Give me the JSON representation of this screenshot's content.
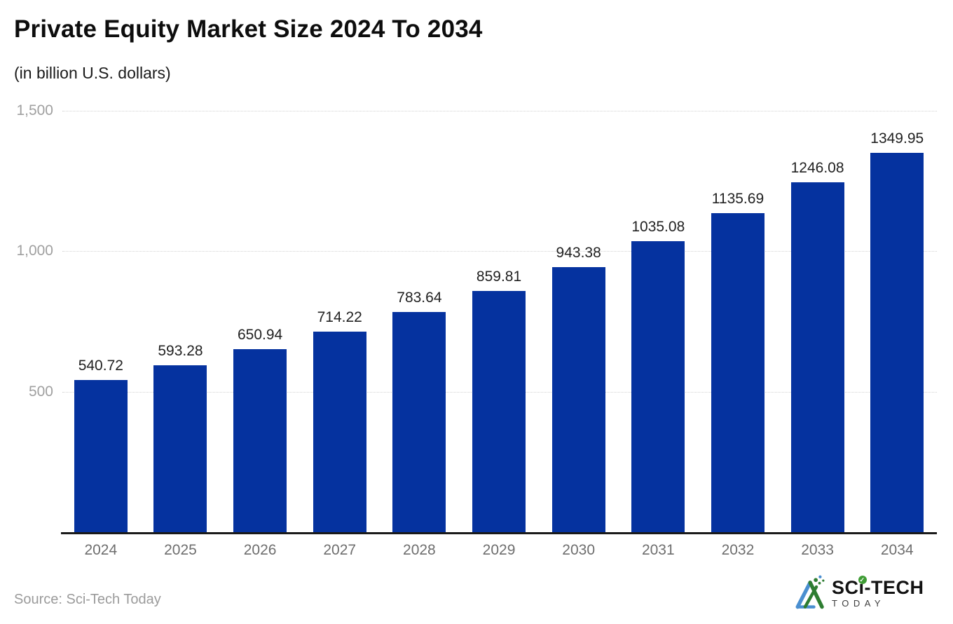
{
  "page": {
    "title": "Private Equity Market Size 2024 To 2034",
    "subtitle": "(in billion U.S. dollars)",
    "source": "Source: Sci-Tech Today"
  },
  "chart_data": {
    "type": "bar",
    "title": "Private Equity Market Size 2024 To 2034",
    "subtitle": "(in billion U.S. dollars)",
    "unit": "billion U.S. dollars",
    "categories": [
      "2024",
      "2025",
      "2026",
      "2027",
      "2028",
      "2029",
      "2030",
      "2031",
      "2032",
      "2033",
      "2034"
    ],
    "values": [
      540.72,
      593.28,
      650.94,
      714.22,
      783.64,
      859.81,
      943.38,
      1035.08,
      1135.69,
      1246.08,
      1349.95
    ],
    "ylim": [
      0,
      1500
    ],
    "yticks": [
      {
        "value": 1500,
        "label": "1,500"
      },
      {
        "value": 1000,
        "label": "1,000"
      },
      {
        "value": 500,
        "label": "500"
      }
    ],
    "grid": "horizontal-dotted",
    "legend": "none",
    "bar_color": "#05329f",
    "value_label_color": "#212121",
    "axis_line_color": "#1a1a1a",
    "gridline_color": "#d2d2d2"
  },
  "logo": {
    "brand_left": "SC",
    "brand_i": "ı",
    "brand_right": "-TECH",
    "brand_bottom": "TODAY",
    "check_glyph": "✓",
    "colors": {
      "check_green": "#3f9c35",
      "mark_blue": "#4a8fd0",
      "mark_green": "#2e7d32",
      "text_black": "#121212"
    }
  }
}
